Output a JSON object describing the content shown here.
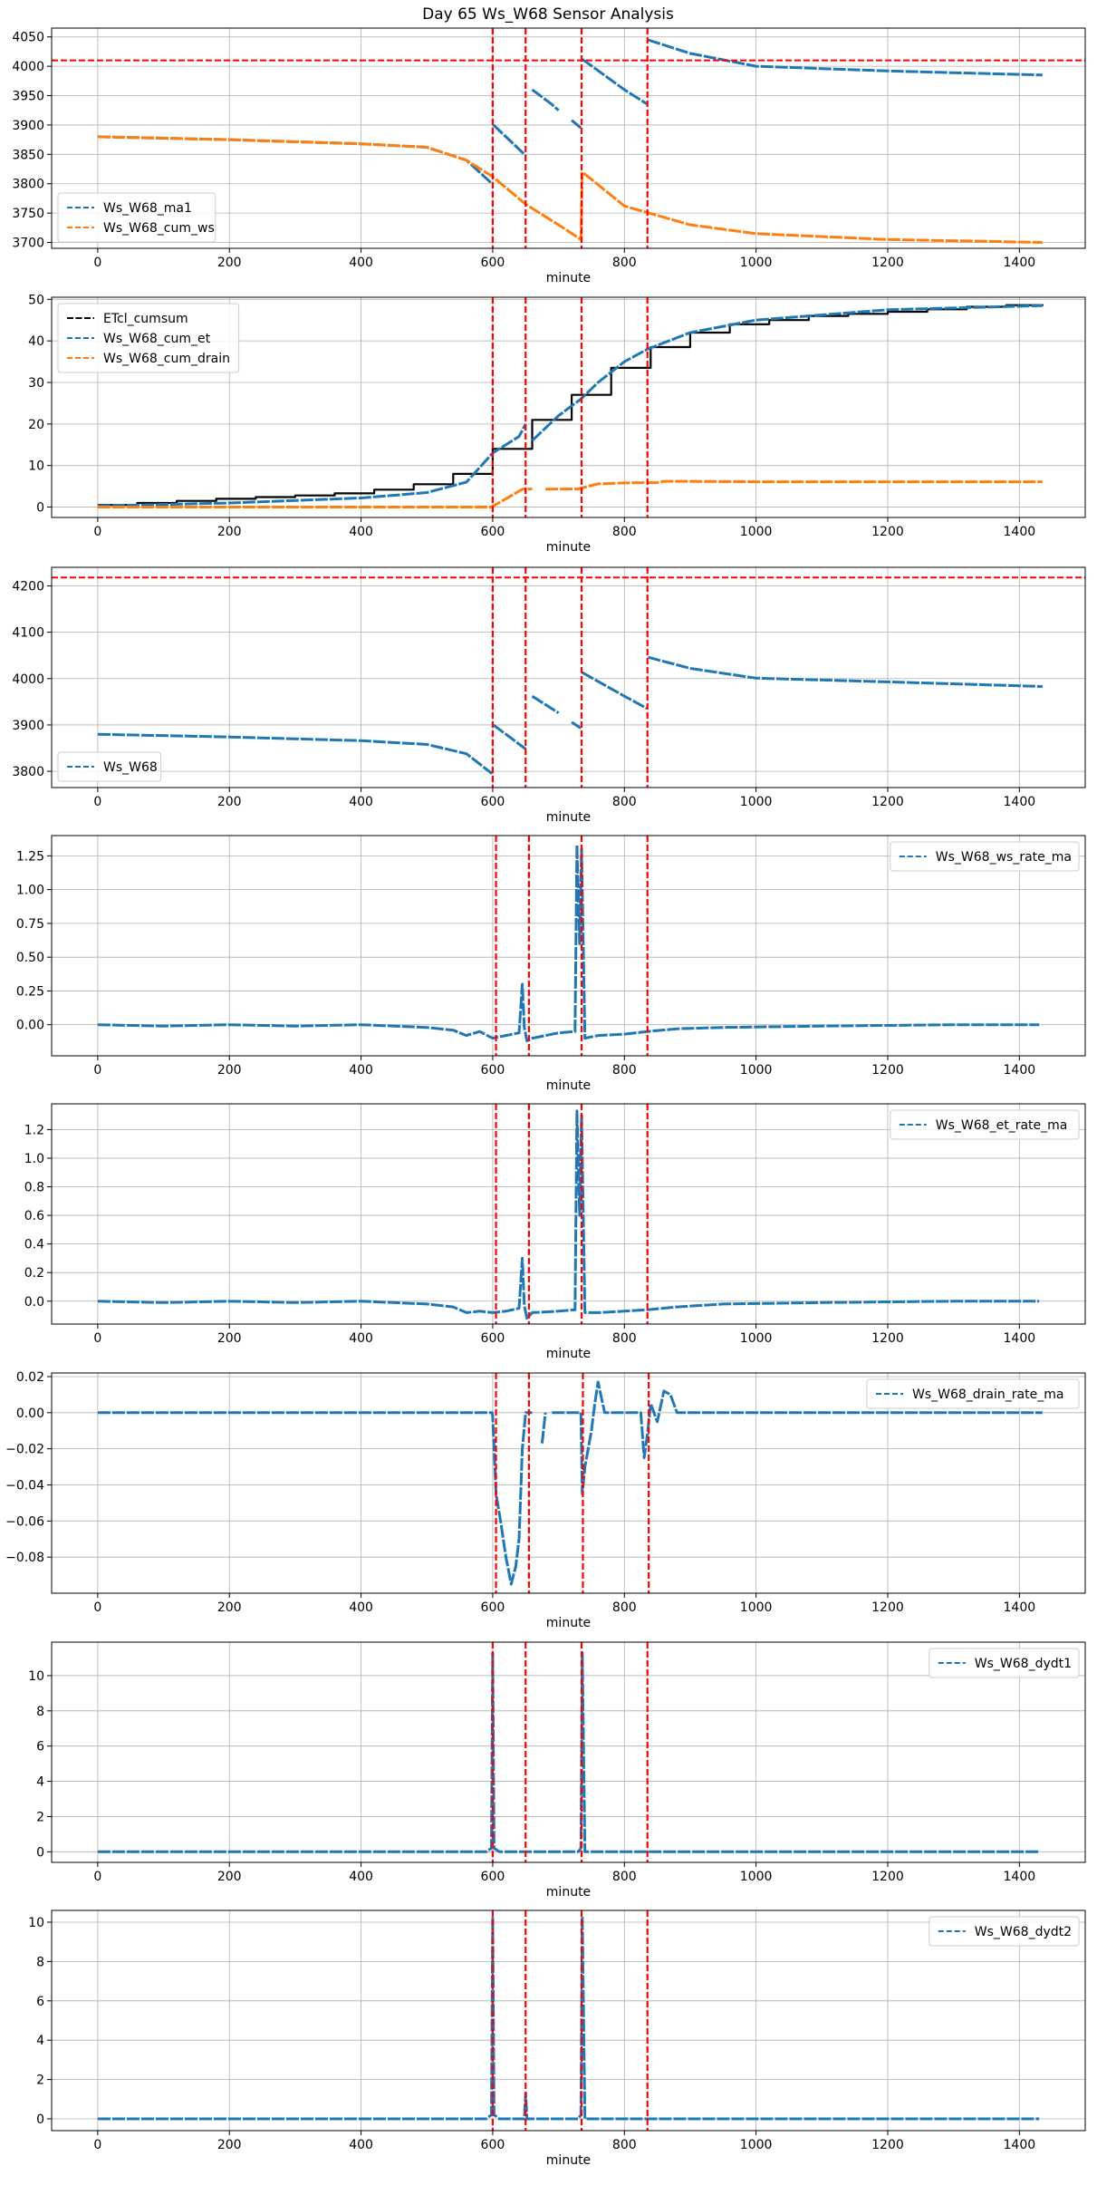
{
  "figure": {
    "title": "Day 65 Ws_W68 Sensor Analysis",
    "colors": {
      "blue": "#1f77b4",
      "orange": "#ff7f0e",
      "black": "#000000",
      "red": "#ff0000"
    }
  },
  "chart_data": [
    {
      "type": "line",
      "xlabel": "minute",
      "xlim": [
        -70,
        1500
      ],
      "ylim": [
        3690,
        4065
      ],
      "xticks": [
        0,
        200,
        400,
        600,
        800,
        1000,
        1200,
        1400
      ],
      "yticks": [
        3700,
        3750,
        3800,
        3850,
        3900,
        3950,
        4000,
        4050
      ],
      "grid": true,
      "legend": "lower-left",
      "vlines": [
        600,
        650,
        735,
        835
      ],
      "hlines": [
        4010
      ],
      "series": [
        {
          "name": "Ws_W68_ma1",
          "color": "#1f77b4",
          "x": [
            0,
            200,
            400,
            500,
            560,
            599,
            null,
            601,
            650,
            null,
            660,
            690,
            700,
            null,
            720,
            734,
            null,
            736,
            800,
            834,
            null,
            836,
            900,
            1000,
            1200,
            1435
          ],
          "y": [
            3880,
            3875,
            3868,
            3862,
            3840,
            3800,
            null,
            3900,
            3848,
            null,
            3960,
            3935,
            3925,
            null,
            3908,
            3895,
            null,
            4012,
            3960,
            3936,
            null,
            4045,
            4022,
            4000,
            3992,
            3985
          ]
        },
        {
          "name": "Ws_W68_cum_ws",
          "color": "#ff7f0e",
          "x": [
            0,
            200,
            400,
            500,
            560,
            600,
            650,
            700,
            734,
            736,
            800,
            900,
            1000,
            1200,
            1435
          ],
          "y": [
            3880,
            3875,
            3868,
            3862,
            3840,
            3812,
            3765,
            3730,
            3705,
            3820,
            3762,
            3730,
            3715,
            3705,
            3700
          ]
        }
      ]
    },
    {
      "type": "line",
      "xlabel": "minute",
      "xlim": [
        -70,
        1500
      ],
      "ylim": [
        -2.5,
        50.5
      ],
      "xticks": [
        0,
        200,
        400,
        600,
        800,
        1000,
        1200,
        1400
      ],
      "yticks": [
        0,
        10,
        20,
        30,
        40,
        50
      ],
      "grid": true,
      "legend": "upper-left",
      "vlines": [
        600,
        650,
        735,
        835
      ],
      "hlines": [],
      "series": [
        {
          "name": "ETcl_cumsum",
          "color": "#000000",
          "step": true,
          "x": [
            0,
            60,
            120,
            180,
            240,
            300,
            360,
            420,
            480,
            540,
            600,
            660,
            720,
            780,
            840,
            900,
            960,
            1020,
            1080,
            1140,
            1200,
            1260,
            1320,
            1380,
            1435
          ],
          "y": [
            0.5,
            1,
            1.5,
            2,
            2.4,
            2.8,
            3.3,
            4.2,
            5.5,
            8,
            14,
            21,
            27,
            33.5,
            38.5,
            42,
            44,
            45,
            46,
            46.5,
            47,
            47.6,
            48.2,
            48.6,
            48.8
          ]
        },
        {
          "name": "Ws_W68_cum_et",
          "color": "#1f77b4",
          "x": [
            0,
            200,
            400,
            500,
            560,
            600,
            640,
            650,
            null,
            660,
            700,
            734,
            760,
            800,
            835,
            900,
            1000,
            1200,
            1435
          ],
          "y": [
            0.3,
            1,
            2.2,
            3.5,
            6,
            13,
            17,
            20,
            null,
            16,
            22,
            26,
            30,
            35,
            38,
            42,
            45,
            47.5,
            48.5
          ]
        },
        {
          "name": "Ws_W68_cum_drain",
          "color": "#ff7f0e",
          "x": [
            0,
            200,
            400,
            599,
            601,
            620,
            645,
            660,
            null,
            680,
            730,
            745,
            760,
            800,
            850,
            860,
            900,
            1000,
            1200,
            1435
          ],
          "y": [
            0,
            0,
            0,
            0,
            0.3,
            2,
            4.3,
            4.4,
            null,
            4.3,
            4.4,
            5,
            5.6,
            5.8,
            5.9,
            6.2,
            6.2,
            6.1,
            6.1,
            6.1
          ]
        }
      ]
    },
    {
      "type": "line",
      "xlabel": "minute",
      "xlim": [
        -70,
        1500
      ],
      "ylim": [
        3765,
        4240
      ],
      "xticks": [
        0,
        200,
        400,
        600,
        800,
        1000,
        1200,
        1400
      ],
      "yticks": [
        3800,
        3900,
        4000,
        4100,
        4200
      ],
      "grid": true,
      "legend": "lower-left",
      "vlines": [
        600,
        650,
        735,
        835
      ],
      "hlines": [
        4218
      ],
      "series": [
        {
          "name": "Ws_W68",
          "color": "#1f77b4",
          "x": [
            0,
            200,
            400,
            500,
            560,
            599,
            null,
            601,
            650,
            null,
            660,
            690,
            700,
            null,
            720,
            734,
            null,
            736,
            800,
            834,
            null,
            836,
            900,
            1000,
            1200,
            1435
          ],
          "y": [
            3880,
            3874,
            3866,
            3858,
            3838,
            3795,
            null,
            3900,
            3848,
            null,
            3962,
            3935,
            3926,
            null,
            3906,
            3893,
            null,
            4013,
            3962,
            3936,
            null,
            4046,
            4022,
            4001,
            3993,
            3983
          ]
        }
      ]
    },
    {
      "type": "line",
      "xlabel": "minute",
      "xlim": [
        -70,
        1500
      ],
      "ylim": [
        -0.23,
        1.4
      ],
      "xticks": [
        0,
        200,
        400,
        600,
        800,
        1000,
        1200,
        1400
      ],
      "yticks": [
        0,
        0.25,
        0.5,
        0.75,
        1.0,
        1.25
      ],
      "ytick_labels": [
        "0.00",
        "0.25",
        "0.50",
        "0.75",
        "1.00",
        "1.25"
      ],
      "grid": true,
      "legend": "upper-right",
      "vlines": [
        605,
        655,
        735,
        835
      ],
      "hlines": [],
      "series": [
        {
          "name": "Ws_W68_ws_rate_ma",
          "color": "#1f77b4",
          "x": [
            0,
            100,
            200,
            300,
            400,
            500,
            540,
            560,
            580,
            600,
            620,
            640,
            645,
            648,
            652,
            660,
            700,
            725,
            728,
            732,
            735,
            740,
            760,
            800,
            835,
            880,
            950,
            1100,
            1300,
            1430
          ],
          "y": [
            0,
            -0.01,
            0,
            -0.01,
            0,
            -0.02,
            -0.04,
            -0.08,
            -0.05,
            -0.1,
            -0.08,
            -0.06,
            0.3,
            -0.02,
            -0.12,
            -0.1,
            -0.06,
            -0.05,
            1.33,
            0.6,
            1.3,
            -0.1,
            -0.08,
            -0.07,
            -0.05,
            -0.03,
            -0.02,
            -0.01,
            0,
            0
          ]
        }
      ]
    },
    {
      "type": "line",
      "xlabel": "minute",
      "xlim": [
        -70,
        1500
      ],
      "ylim": [
        -0.16,
        1.38
      ],
      "xticks": [
        0,
        200,
        400,
        600,
        800,
        1000,
        1200,
        1400
      ],
      "yticks": [
        0,
        0.2,
        0.4,
        0.6,
        0.8,
        1.0,
        1.2
      ],
      "ytick_labels": [
        "0.0",
        "0.2",
        "0.4",
        "0.6",
        "0.8",
        "1.0",
        "1.2"
      ],
      "grid": true,
      "legend": "upper-right",
      "vlines": [
        605,
        655,
        735,
        835
      ],
      "hlines": [],
      "series": [
        {
          "name": "Ws_W68_et_rate_ma",
          "color": "#1f77b4",
          "x": [
            0,
            100,
            200,
            300,
            400,
            500,
            540,
            560,
            580,
            600,
            620,
            640,
            645,
            648,
            652,
            660,
            700,
            725,
            728,
            732,
            735,
            740,
            760,
            800,
            835,
            880,
            950,
            1100,
            1300,
            1430
          ],
          "y": [
            0,
            -0.01,
            0,
            -0.01,
            0,
            -0.02,
            -0.04,
            -0.08,
            -0.07,
            -0.08,
            -0.07,
            -0.05,
            0.3,
            -0.03,
            -0.12,
            -0.08,
            -0.07,
            -0.06,
            1.33,
            0.6,
            1.3,
            -0.08,
            -0.08,
            -0.07,
            -0.06,
            -0.04,
            -0.02,
            -0.01,
            0,
            0
          ]
        }
      ]
    },
    {
      "type": "line",
      "xlabel": "minute",
      "xlim": [
        -70,
        1500
      ],
      "ylim": [
        -0.1,
        0.022
      ],
      "xticks": [
        0,
        200,
        400,
        600,
        800,
        1000,
        1200,
        1400
      ],
      "yticks": [
        -0.08,
        -0.06,
        -0.04,
        -0.02,
        0.0,
        0.02
      ],
      "ytick_labels": [
        "-0.08",
        "-0.06",
        "-0.04",
        "-0.02",
        "0.00",
        "0.02"
      ],
      "grid": true,
      "legend": "upper-right",
      "vlines": [
        605,
        655,
        737,
        837
      ],
      "hlines": [],
      "series": [
        {
          "name": "Ws_W68_drain_rate_ma",
          "color": "#1f77b4",
          "x": [
            0,
            300,
            599,
            600,
            605,
            612,
            620,
            628,
            635,
            640,
            645,
            650,
            660,
            null,
            675,
            680,
            null,
            690,
            734,
            736,
            740,
            745,
            750,
            755,
            760,
            770,
            825,
            830,
            835,
            840,
            850,
            860,
            870,
            880,
            1000,
            1200,
            1435
          ],
          "y": [
            0,
            0,
            0,
            -0.002,
            -0.045,
            -0.06,
            -0.08,
            -0.095,
            -0.085,
            -0.07,
            -0.02,
            0,
            0,
            null,
            -0.017,
            0,
            null,
            0,
            0,
            -0.045,
            -0.03,
            -0.02,
            -0.01,
            0.005,
            0.017,
            0,
            0,
            -0.025,
            -0.012,
            0.005,
            -0.005,
            0.012,
            0.01,
            0,
            0,
            0,
            0
          ]
        }
      ]
    },
    {
      "type": "line",
      "xlabel": "minute",
      "xlim": [
        -70,
        1500
      ],
      "ylim": [
        -0.6,
        11.9
      ],
      "xticks": [
        0,
        200,
        400,
        600,
        800,
        1000,
        1200,
        1400
      ],
      "yticks": [
        0,
        2,
        4,
        6,
        8,
        10
      ],
      "grid": true,
      "legend": "upper-right",
      "vlines": [
        600,
        650,
        735,
        835
      ],
      "hlines": [],
      "series": [
        {
          "name": "Ws_W68_dydt1",
          "color": "#1f77b4",
          "x": [
            0,
            200,
            400,
            590,
            598,
            600,
            602,
            610,
            650,
            700,
            730,
            734,
            736,
            740,
            800,
            1000,
            1200,
            1430
          ],
          "y": [
            0,
            0,
            0,
            0,
            0.2,
            11.3,
            0.2,
            0,
            0,
            0,
            0,
            0.2,
            11.3,
            0,
            0,
            0,
            0,
            0
          ]
        }
      ]
    },
    {
      "type": "line",
      "xlabel": "minute",
      "xlim": [
        -70,
        1500
      ],
      "ylim": [
        -0.6,
        10.6
      ],
      "xticks": [
        0,
        200,
        400,
        600,
        800,
        1000,
        1200,
        1400
      ],
      "yticks": [
        0,
        2,
        4,
        6,
        8,
        10
      ],
      "grid": true,
      "legend": "upper-right",
      "vlines": [
        600,
        650,
        735,
        835
      ],
      "hlines": [],
      "series": [
        {
          "name": "Ws_W68_dydt2",
          "color": "#1f77b4",
          "x": [
            0,
            200,
            400,
            590,
            598,
            600,
            602,
            610,
            648,
            650,
            652,
            700,
            730,
            734,
            736,
            740,
            800,
            1000,
            1200,
            1430
          ],
          "y": [
            0,
            0,
            0,
            0,
            0.2,
            10.3,
            0.2,
            0,
            0,
            1.3,
            0,
            0,
            0,
            0.2,
            10.3,
            0,
            0,
            0,
            0,
            0
          ]
        }
      ]
    }
  ]
}
